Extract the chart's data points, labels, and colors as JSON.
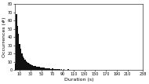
{
  "xlabel": "Duration (s)",
  "ylabel": "Occurrences (#)",
  "xlim": [
    1,
    238
  ],
  "ylim": [
    0,
    80
  ],
  "yticks": [
    0,
    10,
    20,
    30,
    40,
    50,
    60,
    70,
    80
  ],
  "xticks": [
    10,
    30,
    50,
    70,
    90,
    110,
    130,
    150,
    170,
    190,
    210,
    238
  ],
  "bin_edges": [
    1,
    3,
    5,
    7,
    9,
    11,
    13,
    15,
    17,
    19,
    21,
    23,
    25,
    27,
    29,
    31,
    33,
    35,
    37,
    39,
    41,
    43,
    45,
    47,
    49,
    51,
    53,
    55,
    57,
    59,
    61,
    63,
    65,
    67,
    69,
    71,
    73,
    75,
    77,
    79,
    81,
    83,
    85,
    87,
    89,
    91,
    93,
    95,
    97,
    99,
    101,
    103,
    105,
    107,
    109,
    111,
    113,
    115,
    117,
    119,
    121,
    123,
    125,
    127,
    129,
    131,
    133,
    135,
    137,
    139,
    141,
    143,
    145,
    147,
    149,
    151,
    153,
    155,
    157,
    159,
    161,
    163,
    165,
    167,
    169,
    171,
    173,
    175,
    177,
    179,
    181,
    183,
    185,
    187,
    189,
    191,
    193,
    195,
    197,
    199,
    201,
    203,
    205,
    207,
    209,
    211,
    213,
    215,
    217,
    219,
    221,
    223,
    225,
    227,
    229,
    231,
    233,
    235,
    237,
    239
  ],
  "histogram_counts": [
    8,
    68,
    54,
    44,
    32,
    26,
    20,
    17,
    15,
    13,
    11,
    10,
    9,
    8,
    7,
    6,
    6,
    5,
    5,
    5,
    4,
    4,
    4,
    3,
    3,
    3,
    3,
    3,
    2,
    2,
    2,
    2,
    2,
    1,
    2,
    2,
    1,
    1,
    1,
    1,
    1,
    1,
    0,
    1,
    0,
    1,
    0,
    0,
    0,
    1,
    0,
    0,
    0,
    0,
    0,
    0,
    0,
    0,
    0,
    0,
    0,
    0,
    0,
    0,
    0,
    0,
    0,
    0,
    0,
    0,
    0,
    0,
    0,
    0,
    0,
    0,
    0,
    0,
    0,
    0,
    0,
    0,
    0,
    0,
    0,
    0,
    0,
    0,
    0,
    0,
    0,
    0,
    0,
    0,
    0,
    0,
    0,
    0,
    0,
    0,
    0,
    0,
    0,
    0,
    0,
    0,
    0,
    0,
    0,
    0,
    0,
    0,
    0,
    0,
    0,
    0,
    0,
    0,
    0
  ],
  "bar_color": "#111111",
  "background_color": "#ffffff",
  "tick_fontsize": 3.5,
  "label_fontsize": 4.5
}
